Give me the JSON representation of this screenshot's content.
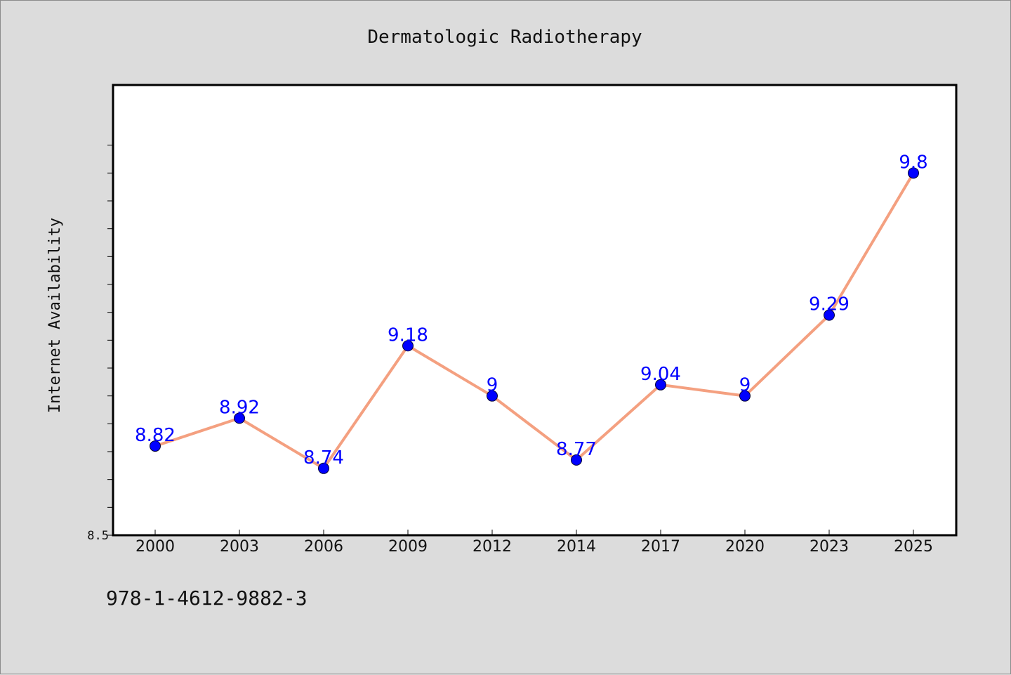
{
  "chart_data": {
    "type": "line",
    "title": "Dermatologic Radiotherapy",
    "xlabel": "",
    "ylabel": "Internet Availability",
    "categories": [
      "2000",
      "2003",
      "2006",
      "2009",
      "2012",
      "2014",
      "2017",
      "2020",
      "2023",
      "2025"
    ],
    "values": [
      8.82,
      8.92,
      8.74,
      9.18,
      9,
      8.77,
      9.04,
      9,
      9.29,
      9.8
    ],
    "data_labels": [
      "8.82",
      "8.92",
      "8.74",
      "9.18",
      "9",
      "8.77",
      "9.04",
      "9",
      "9.29",
      "9.8"
    ],
    "ylim": [
      8.5,
      10.0
    ],
    "y_tick_labels": [
      "8.5"
    ],
    "grid": false,
    "line_color": "#f4a080",
    "marker_color": "#0000ff",
    "label_color": "#0000ff"
  },
  "footer": {
    "isbn": "978-1-4612-9882-3"
  }
}
